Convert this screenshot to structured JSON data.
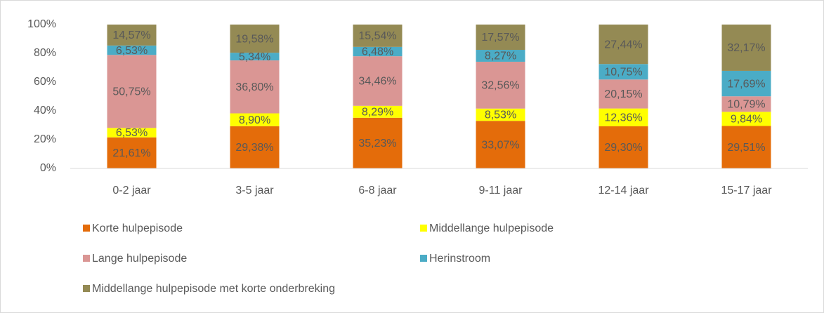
{
  "chart_data": {
    "type": "stacked_bar",
    "categories": [
      "0-2 jaar",
      "3-5 jaar",
      "6-8 jaar",
      "9-11 jaar",
      "12-14 jaar",
      "15-17 jaar"
    ],
    "series": [
      {
        "name": "Korte hulpepisode",
        "color": "#e46c0a",
        "values": [
          21.61,
          29.38,
          35.23,
          33.07,
          29.3,
          29.51
        ],
        "value_labels": [
          "21,61%",
          "29,38%",
          "35,23%",
          "33,07%",
          "29,30%",
          "29,51%"
        ]
      },
      {
        "name": "Middellange hulpepisode",
        "color": "#ffff00",
        "values": [
          6.53,
          8.9,
          8.29,
          8.53,
          12.36,
          9.84
        ],
        "value_labels": [
          "6,53%",
          "8,90%",
          "8,29%",
          "8,53%",
          "12,36%",
          "9,84%"
        ]
      },
      {
        "name": "Lange hulpepisode",
        "color": "#da9694",
        "values": [
          50.75,
          36.8,
          34.46,
          32.56,
          20.15,
          10.79
        ],
        "value_labels": [
          "50,75%",
          "36,80%",
          "34,46%",
          "32,56%",
          "20,15%",
          "10,79%"
        ]
      },
      {
        "name": "Herinstroom",
        "color": "#4bacc6",
        "values": [
          6.53,
          5.34,
          6.48,
          8.27,
          10.75,
          17.69
        ],
        "value_labels": [
          "6,53%",
          "5,34%",
          "6,48%",
          "8,27%",
          "10,75%",
          "17,69%"
        ]
      },
      {
        "name": "Middellange hulpepisode met korte onderbreking",
        "color": "#948a54",
        "values": [
          14.57,
          19.58,
          15.54,
          17.57,
          27.44,
          32.17
        ],
        "value_labels": [
          "14,57%",
          "19,58%",
          "15,54%",
          "17,57%",
          "27,44%",
          "32,17%"
        ]
      }
    ],
    "ylim": [
      0,
      100
    ],
    "yticks": [
      {
        "value": 0,
        "label": "0%"
      },
      {
        "value": 20,
        "label": "20%"
      },
      {
        "value": 40,
        "label": "40%"
      },
      {
        "value": 60,
        "label": "60%"
      },
      {
        "value": 80,
        "label": "80%"
      },
      {
        "value": 100,
        "label": "100%"
      }
    ],
    "grid": false,
    "legend": "bottom"
  }
}
